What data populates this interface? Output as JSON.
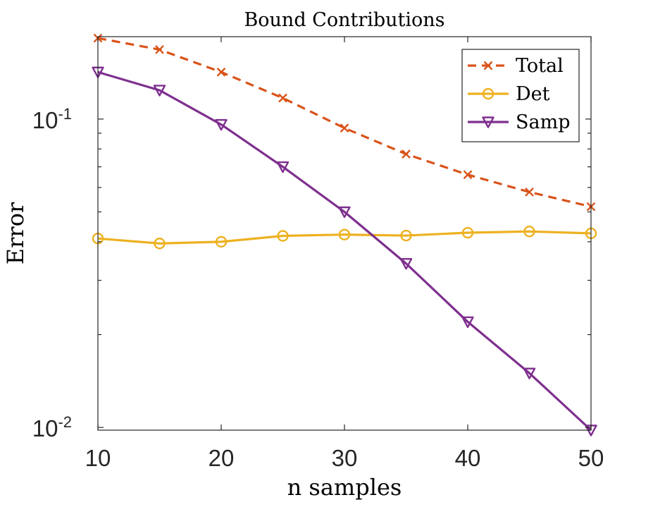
{
  "chart_data": {
    "type": "line",
    "title": "Bound Contributions",
    "xlabel": "n samples",
    "ylabel": "Error",
    "y_scale": "log",
    "xlim": [
      10,
      50
    ],
    "ylim": [
      0.0098,
      0.185
    ],
    "x_ticks": [
      "10",
      "20",
      "30",
      "40",
      "50"
    ],
    "y_ticks": [
      {
        "base": "10",
        "exp": "-2",
        "value": 0.01
      },
      {
        "base": "10",
        "exp": "-1",
        "value": 0.1
      }
    ],
    "grid": false,
    "legend_position": "top-right",
    "x": [
      10,
      15,
      20,
      25,
      30,
      35,
      40,
      45,
      50
    ],
    "series": [
      {
        "name": "Total",
        "color": "#D95319",
        "line": "dashed",
        "marker": "x",
        "values": [
          0.183,
          0.168,
          0.142,
          0.117,
          0.0935,
          0.077,
          0.066,
          0.058,
          0.052
        ]
      },
      {
        "name": "Det",
        "color": "#EDB120",
        "line": "solid",
        "marker": "circle",
        "values": [
          0.041,
          0.0395,
          0.04,
          0.0418,
          0.0422,
          0.0419,
          0.0428,
          0.0432,
          0.0426
        ]
      },
      {
        "name": "Samp",
        "color": "#7E2F8E",
        "line": "solid",
        "marker": "triangle-down",
        "values": [
          0.142,
          0.124,
          0.096,
          0.07,
          0.05,
          0.034,
          0.022,
          0.015,
          0.0098
        ]
      }
    ]
  }
}
